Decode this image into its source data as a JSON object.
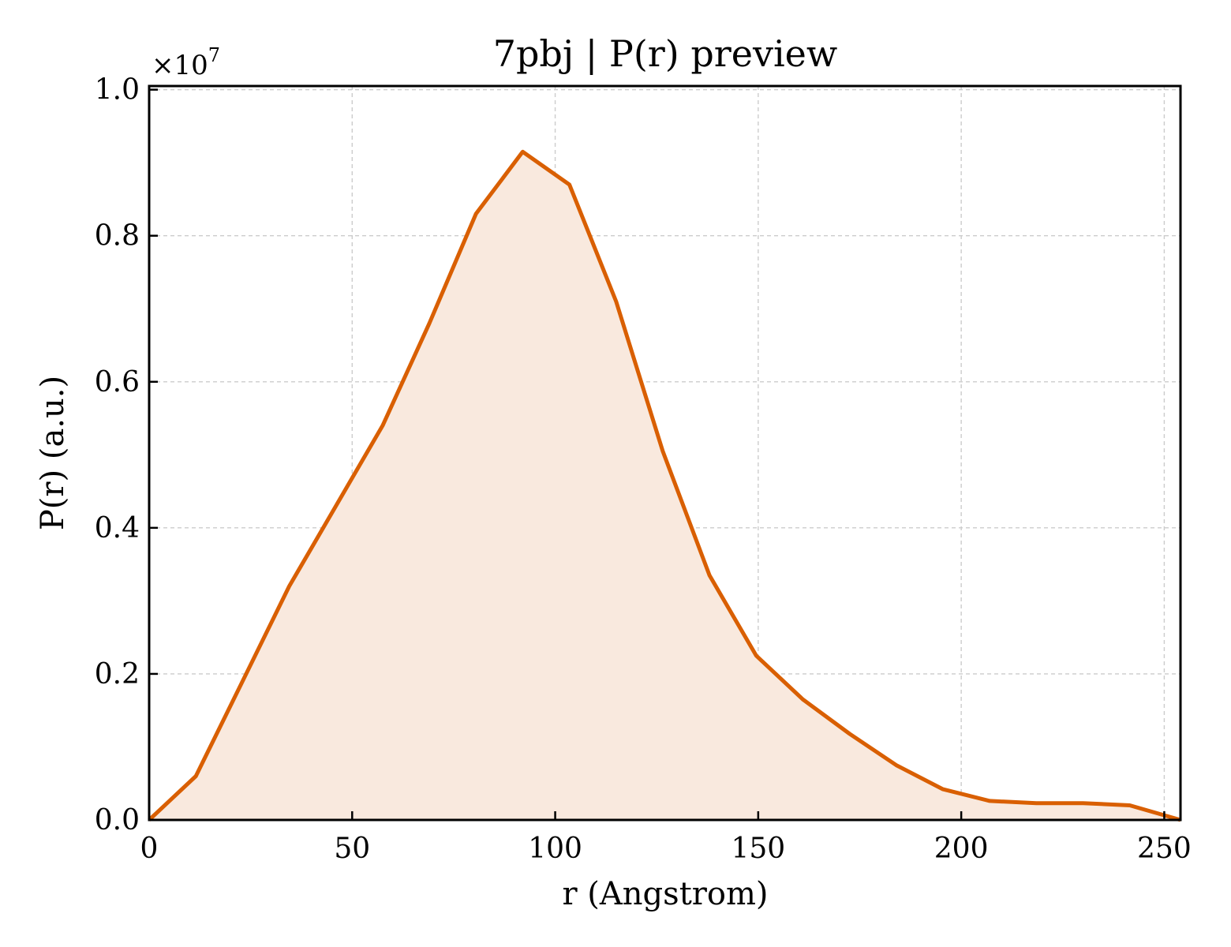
{
  "chart_data": {
    "type": "area",
    "title": "7pbj | P(r) preview",
    "xlabel": "r (Angstrom)",
    "ylabel": "P(r) (a.u.)",
    "y_multiplier": {
      "base": "×10",
      "exponent": "7"
    },
    "xlim": [
      0,
      254
    ],
    "ylim": [
      0,
      1.005
    ],
    "xticks": [
      0,
      50,
      100,
      150,
      200,
      250
    ],
    "xtick_labels": [
      "0",
      "50",
      "100",
      "150",
      "200",
      "250"
    ],
    "yticks": [
      0,
      0.2,
      0.4,
      0.6,
      0.8,
      1.0
    ],
    "ytick_labels": [
      "0.0",
      "0.2",
      "0.4",
      "0.6",
      "0.8",
      "1.0"
    ],
    "grid": true,
    "line_color": "#d95f02",
    "fill_color": "#f9e9de",
    "series": [
      {
        "x": [
          0,
          11.5,
          23.0,
          34.5,
          46.0,
          57.5,
          69.0,
          80.5,
          92.0,
          103.5,
          115.0,
          126.5,
          138.0,
          149.5,
          161.0,
          172.5,
          184.0,
          195.5,
          207.0,
          218.5,
          230.0,
          241.5,
          254.0
        ],
        "y": [
          0.0,
          0.06,
          0.19,
          0.32,
          0.43,
          0.54,
          0.68,
          0.83,
          0.915,
          0.87,
          0.71,
          0.505,
          0.335,
          0.225,
          0.165,
          0.118,
          0.075,
          0.042,
          0.026,
          0.023,
          0.023,
          0.02,
          0.0
        ]
      }
    ]
  }
}
